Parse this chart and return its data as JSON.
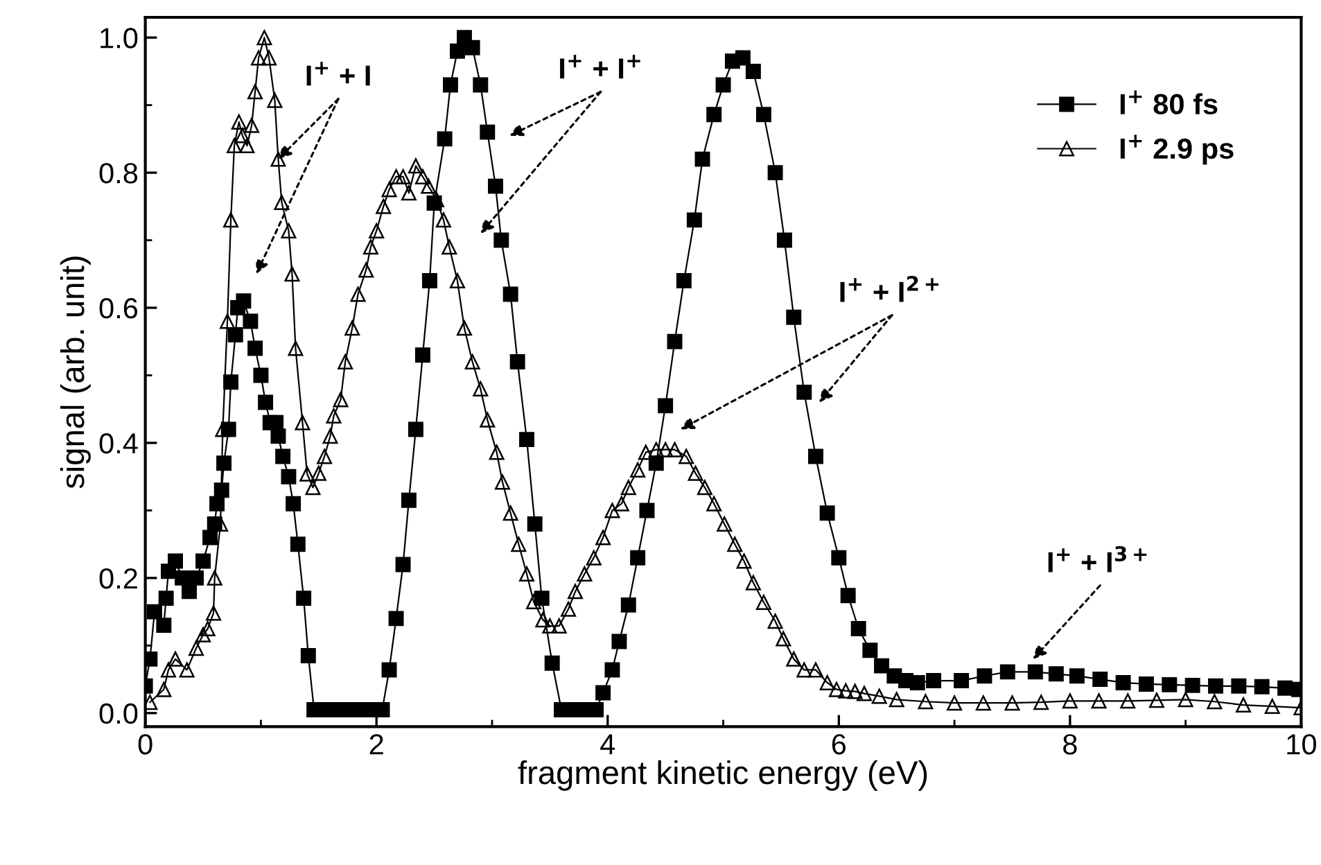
{
  "chart_data": {
    "type": "line",
    "xlabel": "fragment kinetic energy (eV)",
    "ylabel": "signal (arb. unit)",
    "xlim": [
      0,
      10
    ],
    "xticks": [
      0,
      2,
      4,
      6,
      8,
      10
    ],
    "ylim": [
      -0.02,
      1.03
    ],
    "yticks": [
      {
        "value": 0,
        "label": "0.0"
      },
      {
        "value": 0.2,
        "label": "0.2"
      },
      {
        "value": 0.4,
        "label": "0.4"
      },
      {
        "value": 0.6,
        "label": "0.6"
      },
      {
        "value": 0.8,
        "label": "0.8"
      },
      {
        "value": 1.0,
        "label": "1.0"
      }
    ],
    "grid": false,
    "legend": "top right",
    "series": [
      {
        "name": "I$^{+}$ 80 fs",
        "color": "#000000",
        "marker": "square",
        "x": [
          0,
          0.04,
          0.08,
          0.16,
          0.18,
          0.2,
          0.26,
          0.32,
          0.38,
          0.44,
          0.5,
          0.56,
          0.6,
          0.62,
          0.66,
          0.68,
          0.72,
          0.74,
          0.78,
          0.8,
          0.85,
          0.91,
          0.95,
          1.0,
          1.04,
          1.08,
          1.13,
          1.15,
          1.19,
          1.24,
          1.28,
          1.32,
          1.37,
          1.41,
          1.46,
          1.55,
          1.65,
          1.75,
          1.85,
          1.95,
          2.05,
          2.11,
          2.17,
          2.23,
          2.28,
          2.34,
          2.4,
          2.46,
          2.5,
          2.59,
          2.64,
          2.7,
          2.76,
          2.83,
          2.9,
          2.96,
          3.03,
          3.08,
          3.16,
          3.22,
          3.3,
          3.37,
          3.43,
          3.52,
          3.6,
          3.7,
          3.8,
          3.9,
          3.96,
          4.04,
          4.1,
          4.18,
          4.26,
          4.34,
          4.42,
          4.5,
          4.58,
          4.66,
          4.75,
          4.82,
          4.92,
          5.0,
          5.08,
          5.17,
          5.26,
          5.35,
          5.45,
          5.53,
          5.61,
          5.7,
          5.8,
          5.9,
          6.0,
          6.08,
          6.17,
          6.27,
          6.37,
          6.48,
          6.58,
          6.68,
          6.82,
          7.06,
          7.26,
          7.46,
          7.7,
          7.88,
          8.06,
          8.26,
          8.46,
          8.66,
          8.86,
          9.06,
          9.26,
          9.46,
          9.66,
          9.86,
          9.98
        ],
        "values": [
          0.04,
          0.08,
          0.15,
          0.13,
          0.17,
          0.21,
          0.225,
          0.2,
          0.18,
          0.2,
          0.225,
          0.26,
          0.28,
          0.31,
          0.33,
          0.37,
          0.42,
          0.49,
          0.56,
          0.6,
          0.61,
          0.58,
          0.54,
          0.5,
          0.46,
          0.43,
          0.43,
          0.41,
          0.38,
          0.35,
          0.31,
          0.25,
          0.17,
          0.085,
          0.005,
          0.005,
          0.005,
          0.005,
          0.005,
          0.005,
          0.005,
          0.064,
          0.14,
          0.22,
          0.315,
          0.42,
          0.53,
          0.64,
          0.755,
          0.85,
          0.93,
          0.98,
          1.0,
          0.985,
          0.93,
          0.86,
          0.78,
          0.7,
          0.62,
          0.52,
          0.405,
          0.28,
          0.17,
          0.074,
          0.005,
          0.005,
          0.005,
          0.005,
          0.03,
          0.064,
          0.106,
          0.16,
          0.23,
          0.3,
          0.37,
          0.455,
          0.55,
          0.64,
          0.73,
          0.82,
          0.886,
          0.93,
          0.965,
          0.97,
          0.95,
          0.886,
          0.8,
          0.7,
          0.586,
          0.475,
          0.38,
          0.296,
          0.23,
          0.174,
          0.125,
          0.093,
          0.07,
          0.055,
          0.048,
          0.045,
          0.048,
          0.048,
          0.055,
          0.061,
          0.061,
          0.058,
          0.055,
          0.05,
          0.045,
          0.043,
          0.042,
          0.041,
          0.04,
          0.04,
          0.039,
          0.037,
          0.035
        ]
      },
      {
        "name": "I$^{+}$ 2.9 ps",
        "color": "#000000",
        "marker": "triangle",
        "x": [
          0.04,
          0.16,
          0.2,
          0.26,
          0.36,
          0.44,
          0.5,
          0.54,
          0.59,
          0.6,
          0.65,
          0.67,
          0.71,
          0.74,
          0.77,
          0.81,
          0.84,
          0.88,
          0.92,
          0.95,
          0.98,
          1.03,
          1.07,
          1.12,
          1.15,
          1.18,
          1.24,
          1.27,
          1.3,
          1.36,
          1.4,
          1.45,
          1.5,
          1.55,
          1.6,
          1.63,
          1.69,
          1.73,
          1.79,
          1.84,
          1.91,
          1.95,
          2.0,
          2.06,
          2.11,
          2.17,
          2.23,
          2.28,
          2.34,
          2.4,
          2.45,
          2.52,
          2.58,
          2.63,
          2.7,
          2.76,
          2.83,
          2.9,
          2.96,
          3.04,
          3.09,
          3.16,
          3.23,
          3.3,
          3.36,
          3.44,
          3.5,
          3.58,
          3.66,
          3.72,
          3.8,
          3.88,
          3.96,
          4.04,
          4.12,
          4.18,
          4.26,
          4.33,
          4.42,
          4.5,
          4.58,
          4.68,
          4.76,
          4.84,
          4.92,
          5.01,
          5.1,
          5.18,
          5.26,
          5.35,
          5.45,
          5.52,
          5.61,
          5.7,
          5.8,
          5.9,
          5.98,
          6.06,
          6.14,
          6.22,
          6.35,
          6.5,
          6.75,
          7.0,
          7.25,
          7.5,
          7.75,
          8.0,
          8.25,
          8.5,
          8.75,
          9.0,
          9.25,
          9.5,
          9.75,
          10.0
        ],
        "values": [
          0.016,
          0.035,
          0.064,
          0.08,
          0.064,
          0.096,
          0.116,
          0.125,
          0.148,
          0.2,
          0.28,
          0.42,
          0.58,
          0.73,
          0.84,
          0.875,
          0.855,
          0.84,
          0.87,
          0.92,
          0.97,
          1.0,
          0.97,
          0.907,
          0.82,
          0.756,
          0.714,
          0.65,
          0.54,
          0.43,
          0.354,
          0.334,
          0.355,
          0.38,
          0.41,
          0.44,
          0.464,
          0.52,
          0.57,
          0.62,
          0.656,
          0.69,
          0.714,
          0.75,
          0.775,
          0.794,
          0.794,
          0.77,
          0.81,
          0.794,
          0.78,
          0.76,
          0.73,
          0.69,
          0.64,
          0.57,
          0.52,
          0.48,
          0.434,
          0.386,
          0.342,
          0.296,
          0.25,
          0.206,
          0.165,
          0.138,
          0.129,
          0.129,
          0.154,
          0.18,
          0.206,
          0.23,
          0.26,
          0.3,
          0.31,
          0.334,
          0.36,
          0.386,
          0.39,
          0.39,
          0.39,
          0.38,
          0.355,
          0.334,
          0.31,
          0.28,
          0.25,
          0.225,
          0.193,
          0.164,
          0.136,
          0.11,
          0.08,
          0.064,
          0.064,
          0.045,
          0.035,
          0.033,
          0.032,
          0.029,
          0.025,
          0.02,
          0.017,
          0.015,
          0.015,
          0.015,
          0.016,
          0.018,
          0.018,
          0.018,
          0.019,
          0.02,
          0.017,
          0.012,
          0.01,
          0.008
        ]
      }
    ],
    "annotations": [
      {
        "text": "I$^{+}$ + I",
        "x": 1.15,
        "y": 0.82
      },
      "I$^{+}$ + I$^{+}$",
      "I$^{+}$ + I$^{2+}$",
      "I$^{+}$ + I$^{3+}$"
    ]
  }
}
